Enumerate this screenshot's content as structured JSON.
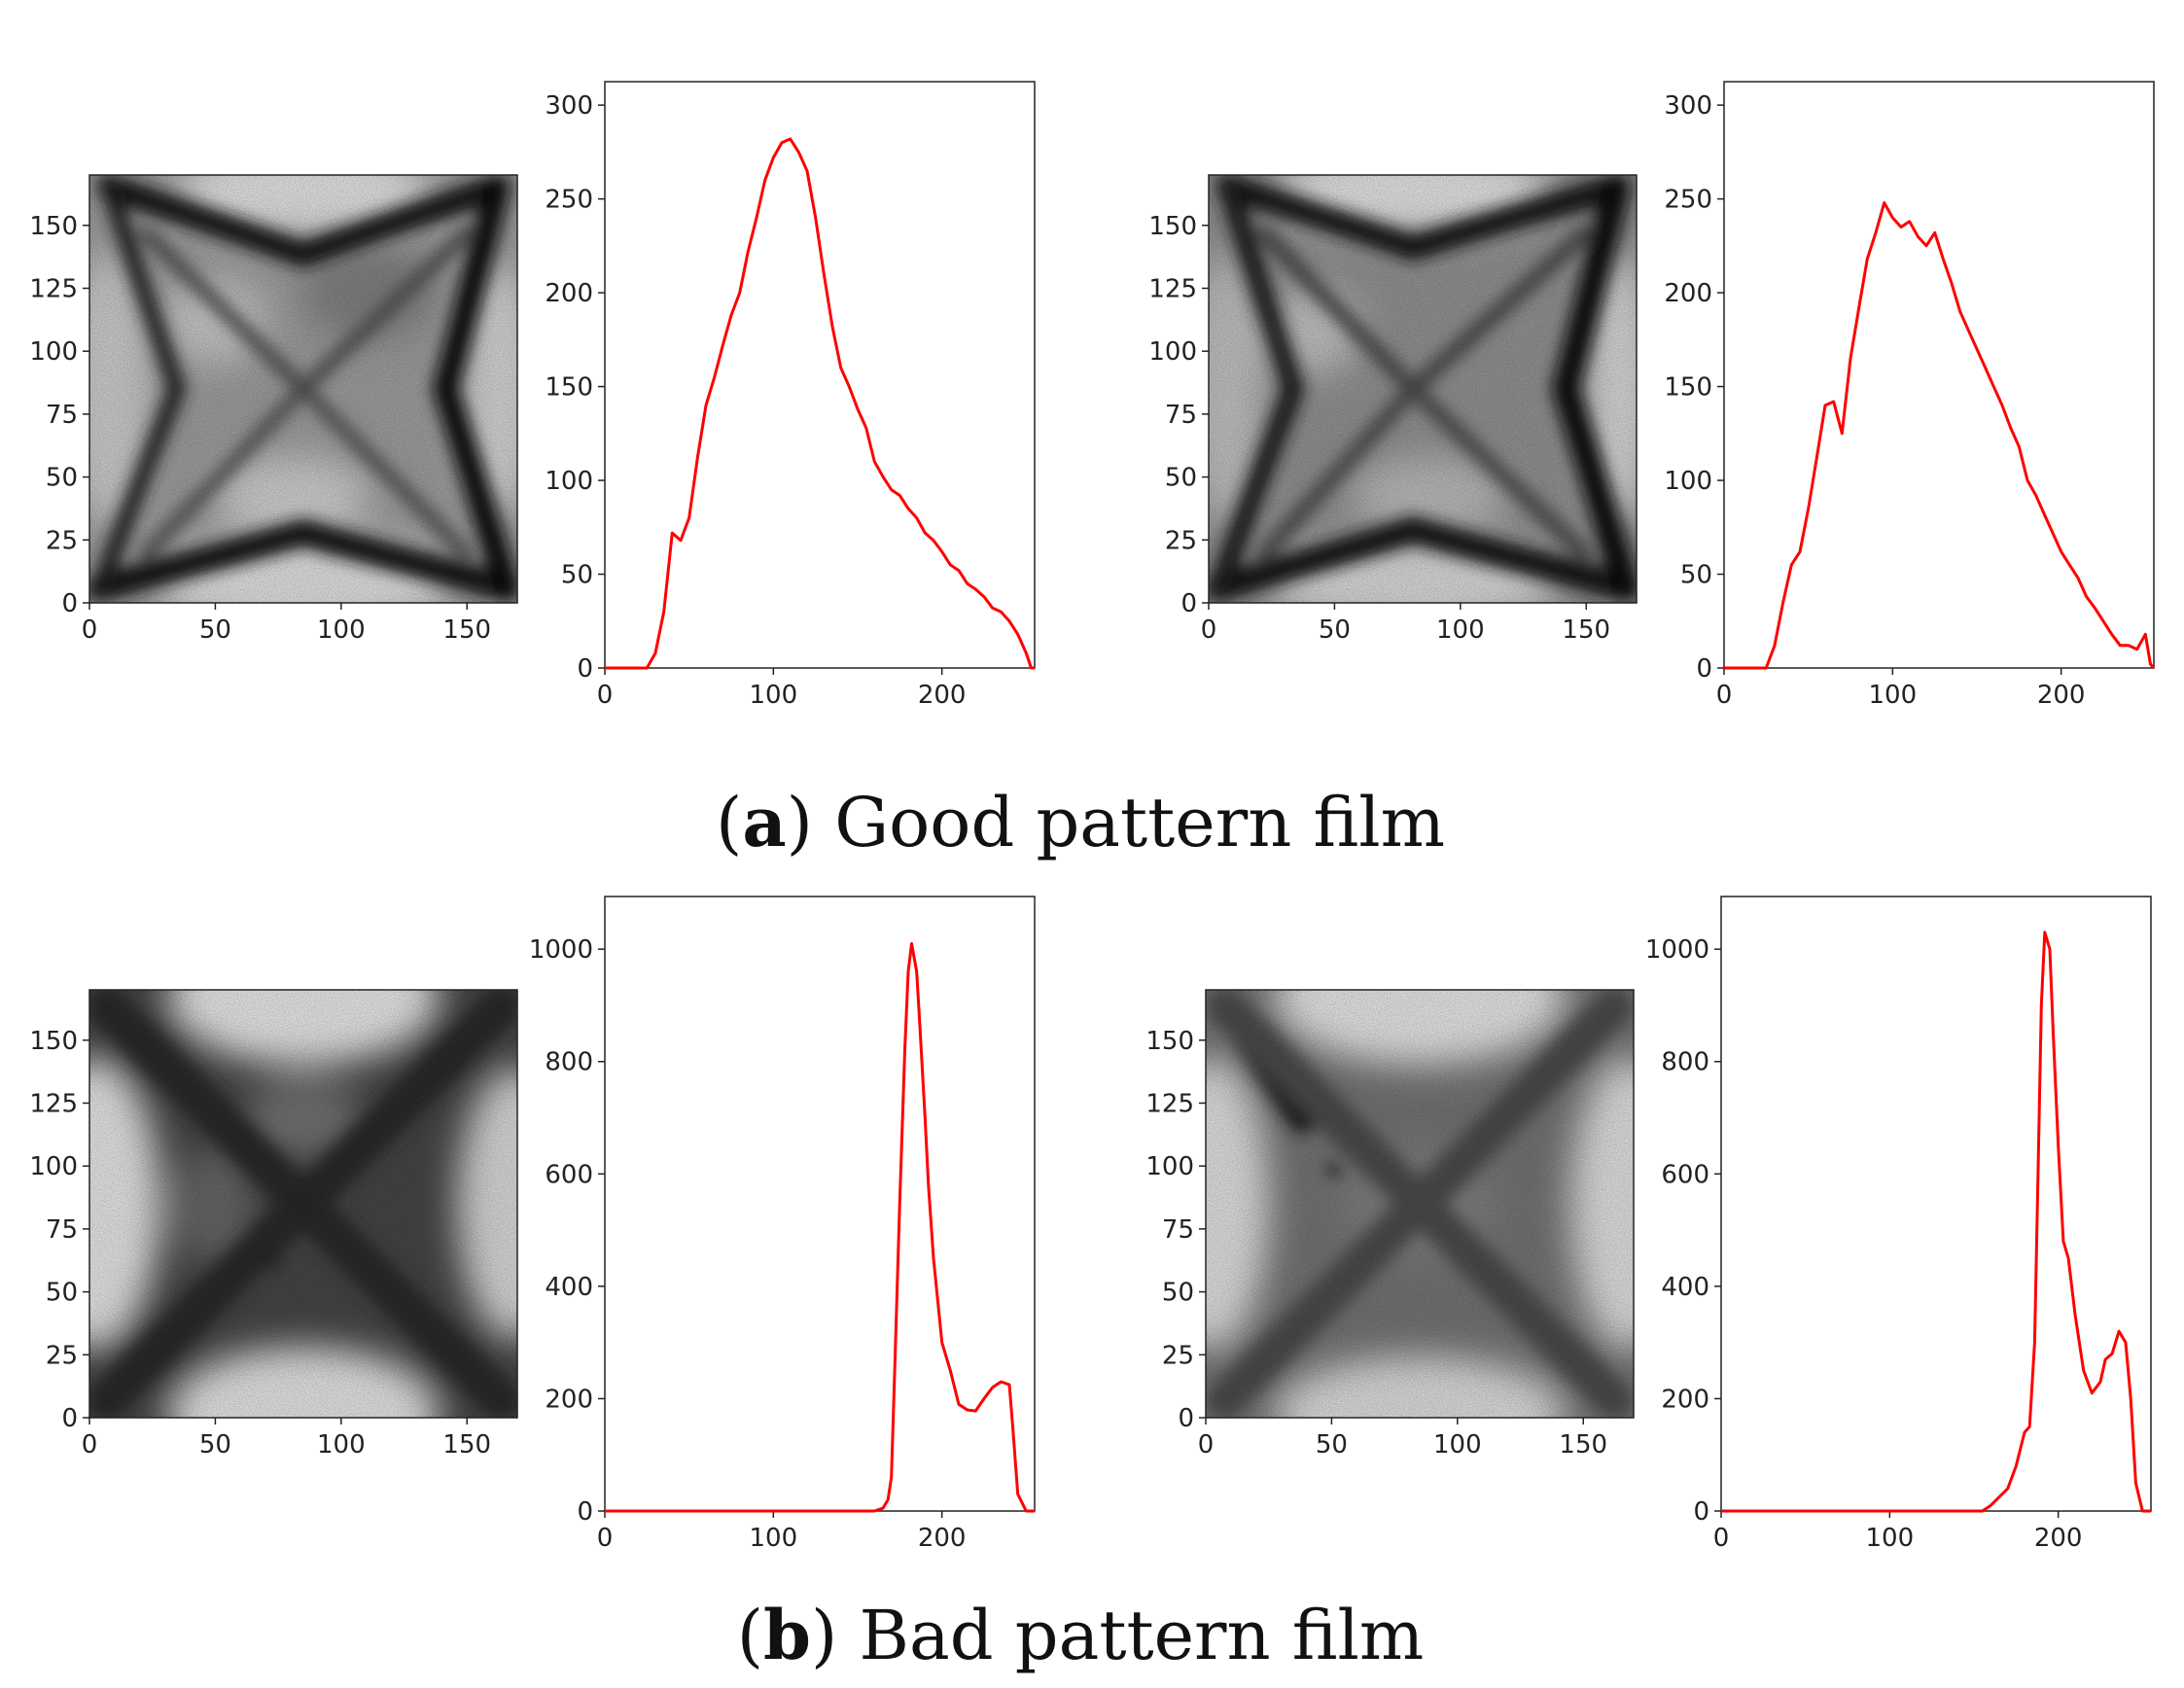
{
  "colors": {
    "hist_line": "#ff0000",
    "axis": "#222222",
    "caption_text": "#111111"
  },
  "captions": {
    "a": {
      "open": "(",
      "letter": "a",
      "close": ")",
      "text": " Good pattern film"
    },
    "b": {
      "open": "(",
      "letter": "b",
      "close": ")",
      "text": " Bad pattern film"
    }
  },
  "chart_data": [
    {
      "type": "heatmap",
      "name": "good-image-1",
      "pattern": "good",
      "variant": 1,
      "xlim": [
        0,
        170
      ],
      "ylim": [
        170,
        0
      ],
      "xticks": [
        0,
        50,
        100,
        150
      ],
      "yticks": [
        0,
        25,
        50,
        75,
        100,
        125,
        150
      ],
      "colormap": "gray"
    },
    {
      "type": "line",
      "name": "good-histogram-1",
      "xlim": [
        0,
        255
      ],
      "ylim": [
        0,
        300
      ],
      "xticks": [
        0,
        100,
        200
      ],
      "yticks": [
        0,
        50,
        100,
        150,
        200,
        250,
        300
      ],
      "x": [
        0,
        25,
        30,
        35,
        40,
        45,
        50,
        55,
        60,
        65,
        70,
        75,
        80,
        85,
        90,
        95,
        100,
        105,
        110,
        115,
        120,
        125,
        130,
        135,
        140,
        145,
        150,
        155,
        160,
        165,
        170,
        175,
        180,
        185,
        190,
        195,
        200,
        205,
        210,
        215,
        220,
        225,
        230,
        235,
        240,
        245,
        250,
        253,
        255
      ],
      "y": [
        0,
        0,
        8,
        30,
        72,
        68,
        80,
        112,
        140,
        155,
        172,
        188,
        200,
        222,
        240,
        260,
        272,
        280,
        282,
        275,
        265,
        240,
        210,
        182,
        160,
        150,
        138,
        128,
        110,
        102,
        95,
        92,
        85,
        80,
        72,
        68,
        62,
        55,
        52,
        45,
        42,
        38,
        32,
        30,
        25,
        18,
        8,
        0,
        0
      ]
    },
    {
      "type": "heatmap",
      "name": "good-image-2",
      "pattern": "good",
      "variant": 2,
      "xlim": [
        0,
        170
      ],
      "ylim": [
        170,
        0
      ],
      "xticks": [
        0,
        50,
        100,
        150
      ],
      "yticks": [
        0,
        25,
        50,
        75,
        100,
        125,
        150
      ],
      "colormap": "gray"
    },
    {
      "type": "line",
      "name": "good-histogram-2",
      "xlim": [
        0,
        255
      ],
      "ylim": [
        0,
        300
      ],
      "xticks": [
        0,
        100,
        200
      ],
      "yticks": [
        0,
        50,
        100,
        150,
        200,
        250,
        300
      ],
      "x": [
        0,
        25,
        30,
        35,
        40,
        45,
        50,
        55,
        60,
        65,
        70,
        75,
        80,
        85,
        90,
        95,
        100,
        105,
        110,
        115,
        120,
        125,
        130,
        135,
        140,
        145,
        150,
        155,
        160,
        165,
        170,
        175,
        180,
        185,
        190,
        195,
        200,
        205,
        210,
        215,
        220,
        225,
        230,
        235,
        240,
        245,
        250,
        253,
        255
      ],
      "y": [
        0,
        0,
        12,
        35,
        55,
        62,
        85,
        112,
        140,
        142,
        125,
        165,
        192,
        218,
        232,
        248,
        240,
        235,
        238,
        230,
        225,
        232,
        218,
        205,
        190,
        180,
        170,
        160,
        150,
        140,
        128,
        118,
        100,
        92,
        82,
        72,
        62,
        55,
        48,
        38,
        32,
        25,
        18,
        12,
        12,
        10,
        18,
        2,
        0
      ]
    },
    {
      "type": "heatmap",
      "name": "bad-image-1",
      "pattern": "bad",
      "variant": 1,
      "xlim": [
        0,
        170
      ],
      "ylim": [
        170,
        0
      ],
      "xticks": [
        0,
        50,
        100,
        150
      ],
      "yticks": [
        0,
        25,
        50,
        75,
        100,
        125,
        150
      ],
      "colormap": "gray"
    },
    {
      "type": "line",
      "name": "bad-histogram-1",
      "xlim": [
        0,
        255
      ],
      "ylim": [
        0,
        1050
      ],
      "xticks": [
        0,
        100,
        200
      ],
      "yticks": [
        0,
        200,
        400,
        600,
        800,
        1000
      ],
      "x": [
        0,
        160,
        165,
        168,
        170,
        172,
        175,
        178,
        180,
        182,
        185,
        187,
        190,
        192,
        195,
        200,
        205,
        210,
        215,
        220,
        225,
        230,
        235,
        240,
        242,
        245,
        250,
        255
      ],
      "y": [
        0,
        0,
        5,
        20,
        60,
        250,
        550,
        820,
        960,
        1010,
        960,
        860,
        700,
        580,
        450,
        300,
        250,
        190,
        180,
        178,
        200,
        220,
        230,
        225,
        150,
        30,
        0,
        0
      ]
    },
    {
      "type": "heatmap",
      "name": "bad-image-2",
      "pattern": "bad",
      "variant": 2,
      "xlim": [
        0,
        170
      ],
      "ylim": [
        170,
        0
      ],
      "xticks": [
        0,
        50,
        100,
        150
      ],
      "yticks": [
        0,
        25,
        50,
        75,
        100,
        125,
        150
      ],
      "colormap": "gray"
    },
    {
      "type": "line",
      "name": "bad-histogram-2",
      "xlim": [
        0,
        255
      ],
      "ylim": [
        0,
        1050
      ],
      "xticks": [
        0,
        100,
        200
      ],
      "yticks": [
        0,
        200,
        400,
        600,
        800,
        1000
      ],
      "x": [
        0,
        155,
        160,
        165,
        170,
        175,
        180,
        183,
        186,
        188,
        190,
        192,
        195,
        197,
        200,
        203,
        206,
        210,
        215,
        220,
        225,
        228,
        232,
        236,
        240,
        243,
        246,
        250,
        255
      ],
      "y": [
        0,
        0,
        10,
        25,
        40,
        80,
        140,
        150,
        300,
        600,
        900,
        1030,
        1000,
        850,
        650,
        480,
        450,
        350,
        250,
        210,
        230,
        270,
        280,
        320,
        300,
        200,
        50,
        0,
        0
      ]
    }
  ]
}
